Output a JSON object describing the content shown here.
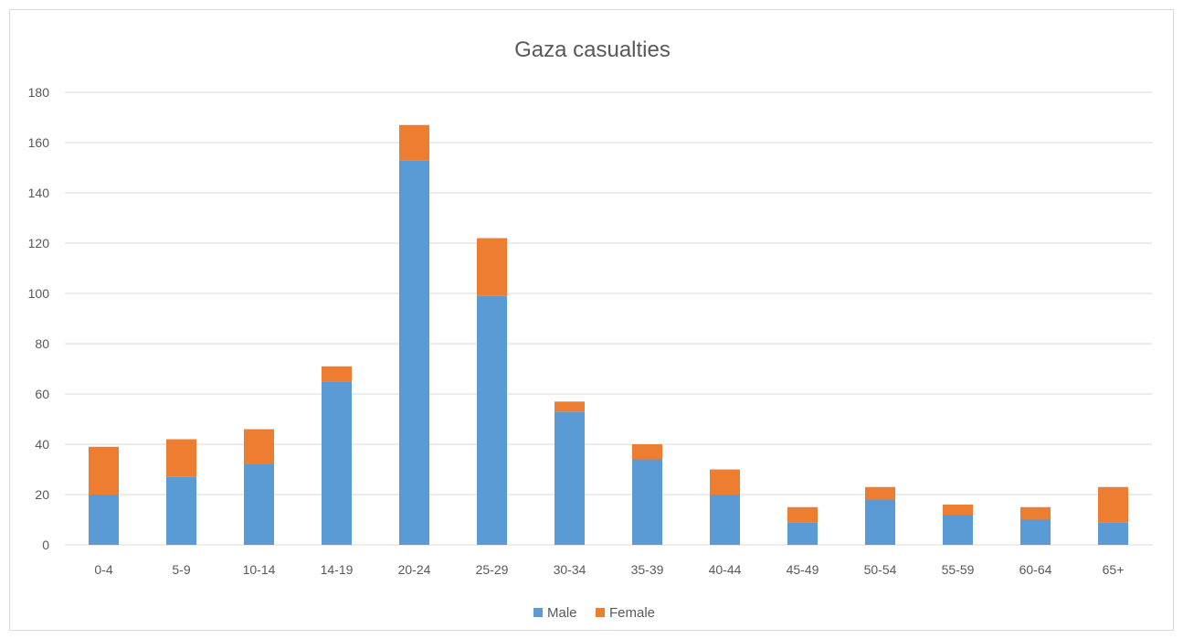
{
  "chart_data": {
    "type": "bar",
    "stacked": true,
    "title": "Gaza casualties",
    "xlabel": "",
    "ylabel": "",
    "categories": [
      "0-4",
      "5-9",
      "10-14",
      "14-19",
      "20-24",
      "25-29",
      "30-34",
      "35-39",
      "40-44",
      "45-49",
      "50-54",
      "55-59",
      "60-64",
      "65+"
    ],
    "series": [
      {
        "name": "Male",
        "color": "#5b9bd5",
        "values": [
          20,
          27,
          32,
          65,
          153,
          99,
          53,
          34,
          20,
          9,
          18,
          12,
          10,
          9
        ]
      },
      {
        "name": "Female",
        "color": "#ed7d31",
        "values": [
          19,
          15,
          14,
          6,
          14,
          23,
          4,
          6,
          10,
          6,
          5,
          4,
          5,
          14
        ]
      }
    ],
    "ylim": [
      0,
      180
    ],
    "yticks": [
      0,
      20,
      40,
      60,
      80,
      100,
      120,
      140,
      160,
      180
    ],
    "grid": true,
    "legend_position": "bottom"
  }
}
